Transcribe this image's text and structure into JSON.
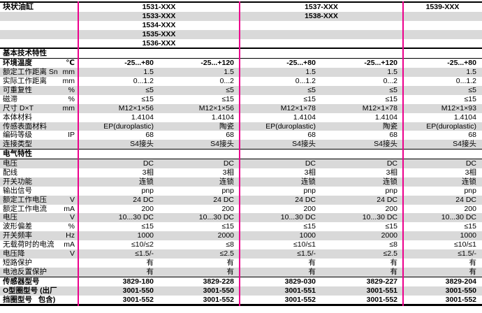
{
  "header": {
    "title": "块状油缸",
    "rows": [
      [
        "1531-XXX",
        "1537-XXX",
        "1539-XXX"
      ],
      [
        "1533-XXX",
        "1538-XXX",
        ""
      ],
      [
        "1534-XXX",
        "",
        ""
      ],
      [
        "1535-XXX",
        "",
        ""
      ],
      [
        "1536-XXX",
        "",
        ""
      ]
    ]
  },
  "rows": [
    {
      "type": "section",
      "label": "基本技术特性"
    },
    {
      "label": "环境温度",
      "unit": "℃",
      "bold": true,
      "stripe": false,
      "values": [
        "-25...+80",
        "-25...+120",
        "-25...+80",
        "-25...+120",
        "-25...+80"
      ]
    },
    {
      "label": "额定工作距离 Sn",
      "unit": "mm",
      "stripe": true,
      "values": [
        "1.5",
        "1.5",
        "1.5",
        "1.5",
        "1.5"
      ]
    },
    {
      "label": "实际工作距离",
      "unit": "mm",
      "stripe": false,
      "values": [
        "0...1.2",
        "0...2",
        "0...1.2",
        "0...2",
        "0...1.2"
      ]
    },
    {
      "label": "可重复性",
      "unit": "%",
      "stripe": true,
      "values": [
        "≤5",
        "≤5",
        "≤5",
        "≤5",
        "≤5"
      ]
    },
    {
      "label": "磁滞",
      "unit": "%",
      "stripe": false,
      "values": [
        "≤15",
        "≤15",
        "≤15",
        "≤15",
        "≤15"
      ]
    },
    {
      "label": "尺寸 D×T",
      "unit": "mm",
      "stripe": true,
      "values": [
        "M12×1×56",
        "M12×1×56",
        "M12×1×78",
        "M12×1×78",
        "M12×1×93"
      ]
    },
    {
      "label": "本体材料",
      "unit": "",
      "stripe": false,
      "values": [
        "1.4104",
        "1.4104",
        "1.4104",
        "1.4104",
        "1.4104"
      ]
    },
    {
      "label": "传感表面材料",
      "unit": "",
      "stripe": true,
      "values": [
        "EP(duroplastic)",
        "陶瓷",
        "EP(duroplastic)",
        "陶瓷",
        "EP(duroplastic)"
      ]
    },
    {
      "label": "编码等级",
      "unit": "IP",
      "stripe": false,
      "values": [
        "68",
        "68",
        "68",
        "68",
        "68"
      ]
    },
    {
      "label": "连接类型",
      "unit": "",
      "stripe": true,
      "values": [
        "S4接头",
        "S4接头",
        "S4接头",
        "S4接头",
        "S4接头"
      ]
    },
    {
      "type": "section",
      "label": "电气特性",
      "thin_top": true
    },
    {
      "label": "电压",
      "unit": "",
      "stripe": true,
      "values": [
        "DC",
        "DC",
        "DC",
        "DC",
        "DC"
      ]
    },
    {
      "label": "配线",
      "unit": "",
      "stripe": false,
      "values": [
        "3相",
        "3相",
        "3相",
        "3相",
        "3相"
      ]
    },
    {
      "label": "开关功能",
      "unit": "",
      "stripe": true,
      "values": [
        "连锁",
        "连锁",
        "连锁",
        "连锁",
        "连锁"
      ]
    },
    {
      "label": "输出信号",
      "unit": "",
      "stripe": false,
      "values": [
        "pnp",
        "pnp",
        "pnp",
        "pnp",
        "pnp"
      ]
    },
    {
      "label": "额定工作电压",
      "unit": "V",
      "stripe": true,
      "values": [
        "24 DC",
        "24 DC",
        "24 DC",
        "24 DC",
        "24 DC"
      ]
    },
    {
      "label": "额定工作电流",
      "unit": "mA",
      "stripe": false,
      "values": [
        "200",
        "200",
        "200",
        "200",
        "200"
      ]
    },
    {
      "label": "电压",
      "unit": "V",
      "stripe": true,
      "values": [
        "10...30 DC",
        "10...30 DC",
        "10...30 DC",
        "10...30 DC",
        "10...30 DC"
      ]
    },
    {
      "label": "波形偏差",
      "unit": "%",
      "stripe": false,
      "values": [
        "≤15",
        "≤15",
        "≤15",
        "≤15",
        "≤15"
      ]
    },
    {
      "label": "开关频率",
      "unit": "Hz",
      "stripe": true,
      "values": [
        "1000",
        "2000",
        "1000",
        "2000",
        "1000"
      ]
    },
    {
      "label": "无载荷时的电流",
      "unit": "mA",
      "stripe": false,
      "values": [
        "≤10/≤2",
        "≤8",
        "≤10/≤1",
        "≤8",
        "≤10/≤1"
      ]
    },
    {
      "label": "电压降",
      "unit": "V",
      "stripe": true,
      "values": [
        "≤1.5/-",
        "≤2.5",
        "≤1.5/-",
        "≤2.5",
        "≤1.5/-"
      ]
    },
    {
      "label": "短路保护",
      "unit": "",
      "stripe": false,
      "values": [
        "有",
        "有",
        "有",
        "有",
        "有"
      ]
    },
    {
      "label": "电池反置保护",
      "unit": "",
      "stripe": true,
      "values": [
        "有",
        "有",
        "有",
        "有",
        "有"
      ]
    },
    {
      "label": "传感器型号",
      "unit": "",
      "bold": true,
      "stripe": false,
      "rule_above": true,
      "values": [
        "3829-180",
        "3829-228",
        "3829-030",
        "3829-227",
        "3829-204"
      ]
    },
    {
      "label": "O型圈型号 (出厂",
      "unit": "",
      "bold": true,
      "stripe": true,
      "values": [
        "3001-550",
        "3001-550",
        "3001-551",
        "3001-551",
        "3001-550"
      ]
    },
    {
      "label": "挡圈型号   包含)",
      "unit": "",
      "bold": true,
      "stripe": false,
      "values": [
        "3001-552",
        "3001-552",
        "3001-552",
        "3001-552",
        "3001-552"
      ]
    }
  ],
  "colors": {
    "accent_pink": "#ec008c",
    "stripe_gray": "#d9d9d9",
    "line_black": "#000000"
  }
}
